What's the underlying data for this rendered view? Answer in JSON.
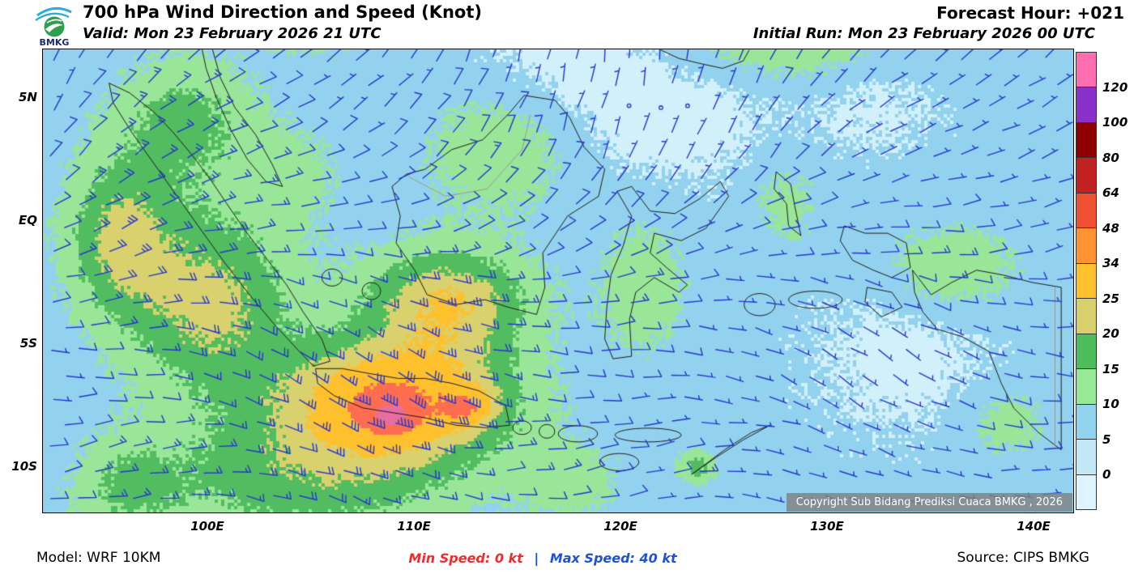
{
  "header": {
    "logo_text": "BMKG",
    "title": "700 hPa Wind Direction and Speed (Knot)",
    "forecast_hour": "Forecast Hour: +021",
    "valid": "Valid: Mon 23 February 2026 21 UTC",
    "initial_run": "Initial Run: Mon 23 February 2026 00 UTC"
  },
  "map": {
    "copyright": "Copyright Sub Bidang Prediksi Cuaca BMKG , 2026",
    "lat_ticks": [
      {
        "label": "5N",
        "lat": 5
      },
      {
        "label": "EQ",
        "lat": 0
      },
      {
        "label": "5S",
        "lat": -5
      },
      {
        "label": "10S",
        "lat": -10
      }
    ],
    "lon_ticks": [
      {
        "label": "100E",
        "lon": 100
      },
      {
        "label": "110E",
        "lon": 110
      },
      {
        "label": "120E",
        "lon": 120
      },
      {
        "label": "130E",
        "lon": 130
      },
      {
        "label": "140E",
        "lon": 140
      }
    ]
  },
  "legend": {
    "values": [
      "120",
      "100",
      "80",
      "64",
      "48",
      "34",
      "25",
      "20",
      "15",
      "10",
      "5",
      "0"
    ],
    "colors_top_to_bottom": [
      "#ff6fb0",
      "#8930c9",
      "#8e0000",
      "#c22121",
      "#ef5033",
      "#ff9233",
      "#ffc02e",
      "#d8cf6d",
      "#4fbd5c",
      "#97e897",
      "#92d3ee",
      "#c2e8f6",
      "#ddf4fc"
    ]
  },
  "footer": {
    "model": "Model: WRF 10KM",
    "min_speed": "Min Speed:  0 kt",
    "separator": "|",
    "max_speed": "Max Speed: 40 kt",
    "source": "Source: CIPS BMKG"
  },
  "colors": {
    "barb": "#2436cf",
    "coastline": "#1c1c1c",
    "border_line": "#999999",
    "min_speed_text": "#ee2b2d",
    "max_speed_text": "#1f52d4",
    "field_classes": [
      {
        "max": 5,
        "color": "#d2f0fa"
      },
      {
        "max": 10,
        "color": "#93d2ee"
      },
      {
        "max": 15,
        "color": "#99e699"
      },
      {
        "max": 20,
        "color": "#52bd60"
      },
      {
        "max": 25,
        "color": "#d9d06e"
      },
      {
        "max": 34,
        "color": "#ffc02e"
      },
      {
        "max": 48,
        "color": "#ff6d50"
      },
      {
        "max": 999,
        "color": "#e86da0"
      }
    ]
  }
}
